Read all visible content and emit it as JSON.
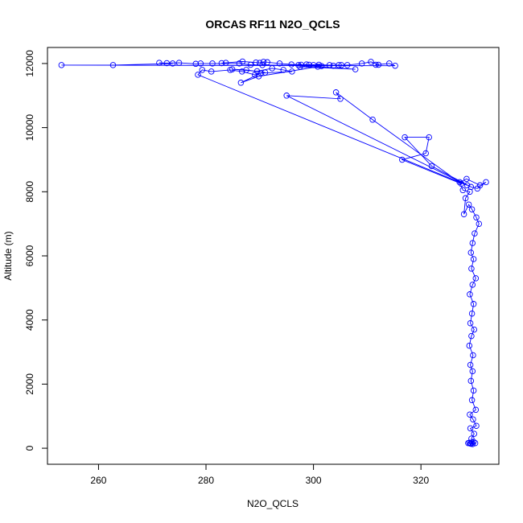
{
  "chart_data": {
    "type": "scatter",
    "title": "ORCAS RF11 N2O_QCLS",
    "xlabel": "N2O_QCLS",
    "ylabel": "Altitude (m)",
    "xlim": [
      250.5,
      334.5
    ],
    "ylim": [
      -500,
      12500
    ],
    "x_ticks": [
      260,
      280,
      300,
      320
    ],
    "y_ticks": [
      0,
      2000,
      4000,
      6000,
      8000,
      10000,
      12000
    ],
    "grid": false,
    "color": "#0000ff",
    "series": [
      {
        "mode": "lines+markers",
        "points": [
          [
            329.2,
            150
          ],
          [
            329.0,
            170
          ],
          [
            328.8,
            160
          ],
          [
            329.5,
            180
          ],
          [
            329.3,
            140
          ],
          [
            329.8,
            200
          ],
          [
            330.1,
            160
          ],
          [
            329.6,
            130
          ],
          [
            329.4,
            300
          ],
          [
            329.9,
            450
          ],
          [
            329.2,
            620
          ],
          [
            330.3,
            700
          ],
          [
            329.7,
            900
          ],
          [
            329.1,
            1050
          ],
          [
            330.2,
            1200
          ],
          [
            329.5,
            1500
          ],
          [
            329.8,
            1800
          ],
          [
            329.3,
            2100
          ],
          [
            329.6,
            2400
          ],
          [
            329.2,
            2600
          ],
          [
            329.7,
            2900
          ],
          [
            329.0,
            3200
          ],
          [
            329.4,
            3500
          ],
          [
            329.9,
            3700
          ],
          [
            329.2,
            3900
          ],
          [
            329.5,
            4200
          ],
          [
            329.8,
            4500
          ],
          [
            329.1,
            4800
          ],
          [
            329.6,
            5100
          ],
          [
            330.2,
            5300
          ],
          [
            329.4,
            5600
          ],
          [
            329.8,
            5900
          ],
          [
            329.3,
            6100
          ],
          [
            329.6,
            6400
          ],
          [
            330.0,
            6700
          ],
          [
            330.8,
            7000
          ],
          [
            330.3,
            7200
          ],
          [
            329.5,
            7450
          ],
          [
            328.9,
            7600
          ],
          [
            328.0,
            7300
          ],
          [
            328.3,
            7800
          ],
          [
            329.1,
            8000
          ],
          [
            327.8,
            8050
          ],
          [
            327.2,
            8300
          ],
          [
            328.5,
            8400
          ],
          [
            331.0,
            8200
          ],
          [
            332.1,
            8300
          ],
          [
            330.5,
            8100
          ],
          [
            329.3,
            8150
          ],
          [
            322.0,
            8800
          ],
          [
            317.0,
            9700
          ],
          [
            321.5,
            9700
          ],
          [
            320.9,
            9200
          ],
          [
            316.5,
            9000
          ],
          [
            327.5,
            8250
          ],
          [
            311.0,
            10250
          ],
          [
            304.2,
            11100
          ],
          [
            305.0,
            10900
          ],
          [
            295.0,
            11000
          ],
          [
            328.6,
            8200
          ],
          [
            278.5,
            11650
          ],
          [
            279.3,
            11800
          ],
          [
            281.0,
            11750
          ],
          [
            284.5,
            11800
          ],
          [
            286.7,
            11750
          ],
          [
            289.1,
            11650
          ],
          [
            291.0,
            11720
          ],
          [
            287.5,
            11800
          ],
          [
            284.9,
            11820
          ],
          [
            289.5,
            11760
          ],
          [
            292.3,
            11850
          ],
          [
            294.4,
            11800
          ],
          [
            296.0,
            11750
          ],
          [
            290.2,
            11700
          ],
          [
            286.5,
            11400
          ],
          [
            289.8,
            11600
          ],
          [
            300.8,
            11900
          ],
          [
            307.8,
            11820
          ],
          [
            297.5,
            11900
          ],
          [
            301.5,
            11920
          ],
          [
            303.7,
            11930
          ],
          [
            305.2,
            11950
          ],
          [
            300.0,
            11950
          ],
          [
            298.7,
            11970
          ],
          [
            297.2,
            11950
          ],
          [
            290.5,
            11950
          ],
          [
            288.3,
            11960
          ],
          [
            286.2,
            12000
          ],
          [
            281.2,
            12000
          ],
          [
            279.0,
            12000
          ],
          [
            278.1,
            11990
          ],
          [
            275.0,
            12020
          ],
          [
            272.7,
            12010
          ],
          [
            271.3,
            12020
          ],
          [
            273.8,
            12000
          ],
          [
            262.7,
            11950
          ],
          [
            253.1,
            11950
          ],
          [
            315.2,
            11930
          ],
          [
            314.1,
            12000
          ],
          [
            311.6,
            11960
          ],
          [
            312.1,
            11960
          ],
          [
            310.7,
            12050
          ],
          [
            309.0,
            12000
          ],
          [
            306.3,
            11950
          ],
          [
            304.7,
            11950
          ],
          [
            303.0,
            11950
          ],
          [
            301.0,
            11960
          ],
          [
            299.2,
            11960
          ],
          [
            297.7,
            11960
          ],
          [
            295.9,
            11970
          ],
          [
            293.7,
            12000
          ],
          [
            291.4,
            12040
          ],
          [
            290.7,
            12050
          ],
          [
            290.0,
            12020
          ],
          [
            289.3,
            12030
          ],
          [
            286.8,
            12060
          ],
          [
            283.7,
            12020
          ],
          [
            282.9,
            12010
          ]
        ]
      }
    ]
  }
}
